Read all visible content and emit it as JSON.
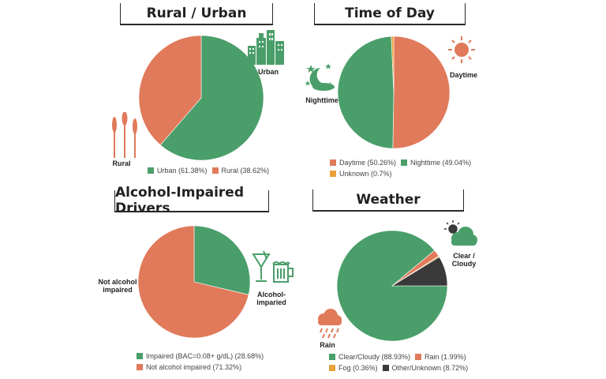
{
  "colors": {
    "green": "#4a9e6a",
    "orange": "#e07a5a",
    "yellow": "#e9a23b",
    "dark": "#3a3a3a"
  },
  "chart_data": [
    {
      "type": "pie",
      "title": "Rural / Urban",
      "series": [
        {
          "name": "Urban",
          "value": 61.38,
          "label": "Urban (61.38%)",
          "color": "#4a9e6a"
        },
        {
          "name": "Rural",
          "value": 38.62,
          "label": "Rural (38.62%)",
          "color": "#e07a5a"
        }
      ],
      "annotations": [
        "Urban",
        "Rural"
      ],
      "icons": [
        "city-buildings-icon",
        "wheat-icon"
      ]
    },
    {
      "type": "pie",
      "title": "Time of Day",
      "series": [
        {
          "name": "Daytime",
          "value": 50.26,
          "label": "Daytime (50.26%)",
          "color": "#e07a5a"
        },
        {
          "name": "Nighttime",
          "value": 49.04,
          "label": "Nighttime (49.04%)",
          "color": "#4a9e6a"
        },
        {
          "name": "Unknown",
          "value": 0.7,
          "label": "Unknown (0.7%)",
          "color": "#e9a23b"
        }
      ],
      "annotations": [
        "Daytime",
        "Nighttime"
      ],
      "icons": [
        "sun-icon",
        "moon-stars-icon"
      ]
    },
    {
      "type": "pie",
      "title": "Alcohol-Impaired Drivers",
      "series": [
        {
          "name": "Impaired (BAC=0.08+ g/dL)",
          "value": 28.68,
          "label": "Impaired (BAC=0.08+ g/dL) (28.68%)",
          "color": "#4a9e6a"
        },
        {
          "name": "Not alcohol impaired",
          "value": 71.32,
          "label": "Not alcohol impaired (71.32%)",
          "color": "#e07a5a"
        }
      ],
      "annotations": [
        "Alcohol-\nimparied",
        "Not alcohol\nimpaired"
      ],
      "icons": [
        "cocktail-glass-icon",
        "beer-mug-icon"
      ]
    },
    {
      "type": "pie",
      "title": "Weather",
      "series": [
        {
          "name": "Clear/Cloudy",
          "value": 88.93,
          "label": "Clear/Cloudy (88.93%)",
          "color": "#4a9e6a"
        },
        {
          "name": "Rain",
          "value": 1.99,
          "label": "Rain (1.99%)",
          "color": "#e07a5a"
        },
        {
          "name": "Fog",
          "value": 0.36,
          "label": "Fog (0.36%)",
          "color": "#e9a23b"
        },
        {
          "name": "Other/Unknown",
          "value": 8.72,
          "label": "Other/Unknown (8.72%)",
          "color": "#3a3a3a"
        }
      ],
      "annotations": [
        "Clear / Cloudy",
        "Rain"
      ],
      "icons": [
        "sun-cloud-icon",
        "rain-cloud-icon"
      ]
    }
  ]
}
